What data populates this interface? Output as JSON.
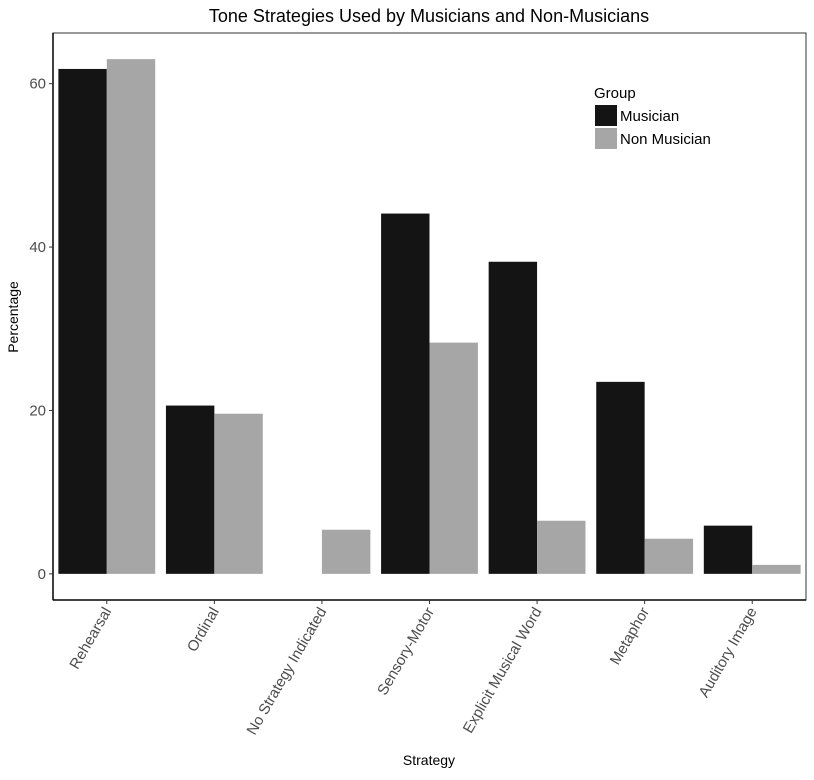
{
  "chart_data": {
    "type": "bar",
    "title": "Tone Strategies Used by Musicians and Non-Musicians",
    "xlabel": "Strategy",
    "ylabel": "Percentage",
    "categories": [
      "Rehearsal",
      "Ordinal",
      "No Strategy Indicated",
      "Sensory-Motor",
      "Explicit Musical Word",
      "Metaphor",
      "Auditory Image"
    ],
    "series": [
      {
        "name": "Musician",
        "color": "#141414",
        "values": [
          61.8,
          20.6,
          0,
          44.1,
          38.2,
          23.5,
          5.9
        ]
      },
      {
        "name": "Non Musician",
        "color": "#a6a6a6",
        "values": [
          63.0,
          19.6,
          5.4,
          28.3,
          6.5,
          4.3,
          1.1
        ]
      }
    ],
    "yticks": [
      0,
      20,
      40,
      60
    ],
    "ylim": [
      -3.2,
      66.2
    ],
    "grid": false,
    "legend": {
      "title": "Group",
      "position": "top-right"
    }
  }
}
